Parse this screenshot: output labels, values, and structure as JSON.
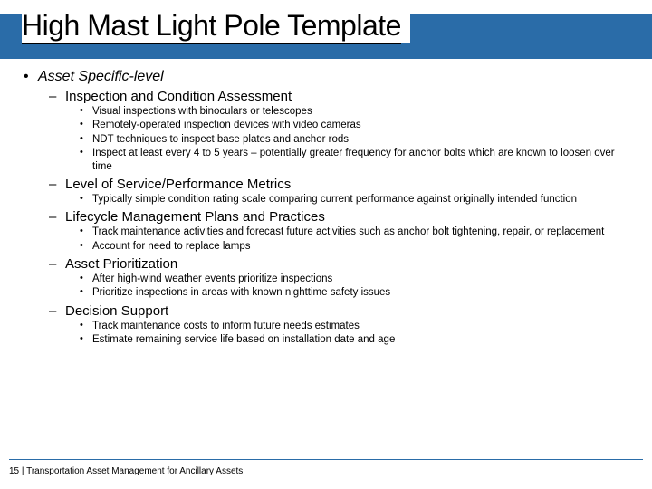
{
  "colors": {
    "accent": "#2a6ca8",
    "text": "#000000",
    "background": "#ffffff"
  },
  "title": "High Mast Light Pole Template",
  "bullets": {
    "lvl1": "Asset Specific-level",
    "s1": {
      "h": "Inspection and Condition Assessment",
      "i1": "Visual inspections with binoculars or telescopes",
      "i2": "Remotely-operated inspection devices with video cameras",
      "i3": "NDT techniques to inspect base plates and anchor rods",
      "i4": "Inspect at least every 4 to 5 years – potentially greater frequency for anchor bolts which are known to loosen over time"
    },
    "s2": {
      "h": "Level of Service/Performance Metrics",
      "i1": "Typically simple condition rating scale comparing current performance against originally intended function"
    },
    "s3": {
      "h": "Lifecycle Management Plans and Practices",
      "i1": "Track maintenance activities and forecast future activities such as anchor bolt tightening, repair, or replacement",
      "i2": "Account for need to replace lamps"
    },
    "s4": {
      "h": "Asset Prioritization",
      "i1": "After high-wind weather events prioritize inspections",
      "i2": "Prioritize inspections in areas with known nighttime safety issues"
    },
    "s5": {
      "h": "Decision Support",
      "i1": "Track maintenance costs to inform future needs estimates",
      "i2": "Estimate remaining service life based on installation date and age"
    }
  },
  "footer": "15 | Transportation Asset Management for Ancillary Assets"
}
